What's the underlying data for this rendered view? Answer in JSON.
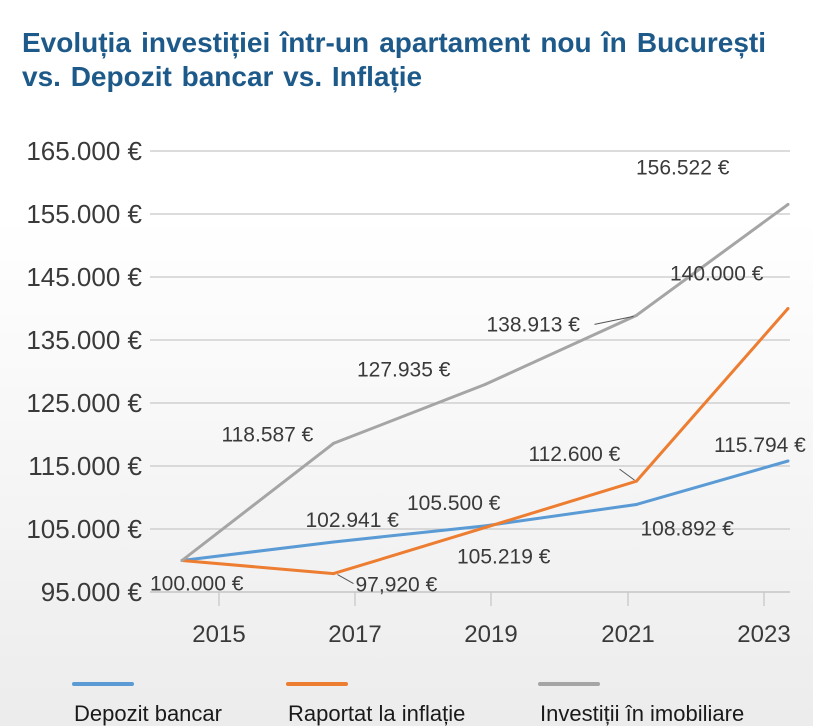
{
  "chart_data": {
    "type": "line",
    "title": "Evoluția investiției într-un apartament nou în București vs. Depozit bancar vs. Inflație",
    "xlabel": "",
    "ylabel": "",
    "x": [
      "2015",
      "2017",
      "2019",
      "2021",
      "2023"
    ],
    "ylim": [
      95000,
      165000
    ],
    "yticks": [
      95000,
      105000,
      115000,
      125000,
      135000,
      145000,
      155000,
      165000
    ],
    "ytick_labels": [
      "95.000 €",
      "105.000 €",
      "115.000 €",
      "125.000 €",
      "135.000 €",
      "145.000 €",
      "155.000 €",
      "165.000 €"
    ],
    "grid": true,
    "legend_position": "bottom",
    "series": [
      {
        "name": "Depozit bancar",
        "color": "#5b9bd5",
        "values": [
          100000,
          102941,
          105500,
          108892,
          115794
        ],
        "labels": [
          "100.000 €",
          "102.941 €",
          "105.500 €",
          "108.892 €",
          "115.794 €"
        ]
      },
      {
        "name": "Raportat la inflație",
        "color": "#ed7d31",
        "values": [
          100000,
          97920,
          105219,
          112600,
          140000
        ],
        "labels": [
          "",
          "97,920 €",
          "105.219 €",
          "112.600 €",
          "140.000 €"
        ]
      },
      {
        "name": "Investiții în imobiliare",
        "color": "#a5a5a5",
        "values": [
          100000,
          118587,
          127935,
          138913,
          156522
        ],
        "labels": [
          "",
          "118.587 €",
          "127.935 €",
          "138.913 €",
          "156.522 €"
        ]
      }
    ]
  }
}
